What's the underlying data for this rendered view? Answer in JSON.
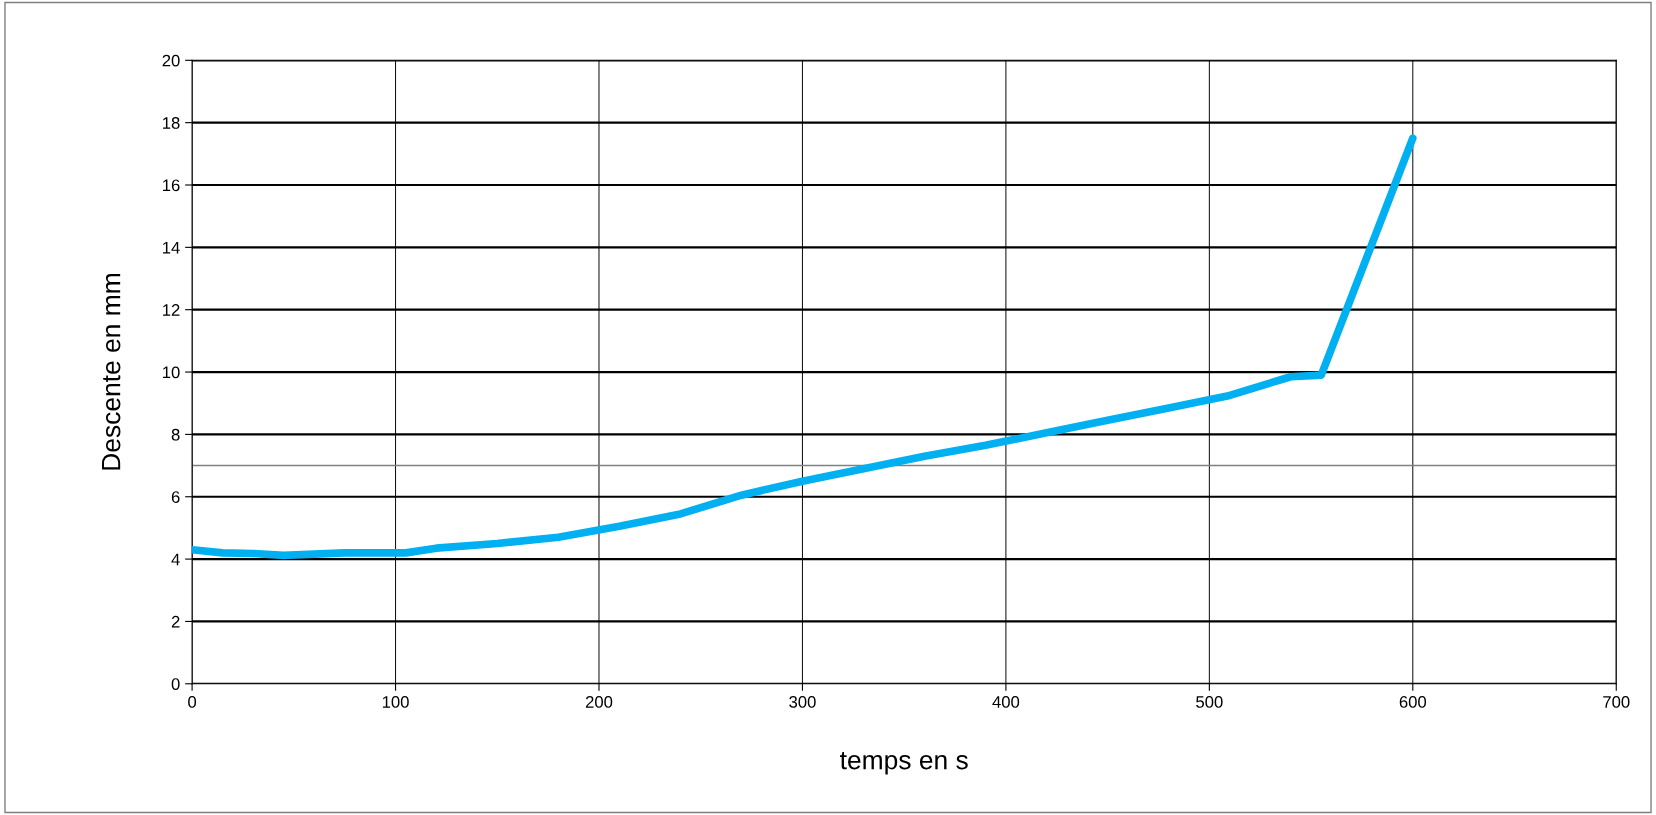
{
  "chart_data": {
    "type": "line",
    "xlabel": "temps en s",
    "ylabel": "Descente en mm",
    "x": [
      0,
      15,
      30,
      45,
      75,
      105,
      120,
      150,
      180,
      210,
      240,
      270,
      300,
      330,
      360,
      390,
      420,
      450,
      480,
      510,
      540,
      555,
      600
    ],
    "series": [
      {
        "color": "#00b0f0",
        "values": [
          4.3,
          4.2,
          4.18,
          4.12,
          4.2,
          4.2,
          4.35,
          4.5,
          4.7,
          5.05,
          5.45,
          6.05,
          6.5,
          6.9,
          7.3,
          7.65,
          8.05,
          8.45,
          8.85,
          9.25,
          9.85,
          9.9,
          17.5
        ]
      }
    ],
    "xlim": [
      0,
      700
    ],
    "xticks": [
      0,
      100,
      200,
      300,
      400,
      500,
      600,
      700
    ],
    "ylim": [
      0,
      20
    ],
    "yticks": [
      0,
      2,
      4,
      6,
      8,
      10,
      12,
      14,
      16,
      18,
      20
    ],
    "ref_lines": [
      {
        "axis": "y",
        "value": 7,
        "color": "#808080"
      }
    ],
    "grid": true,
    "marker": "none",
    "line_style": "solid",
    "legend": false
  }
}
